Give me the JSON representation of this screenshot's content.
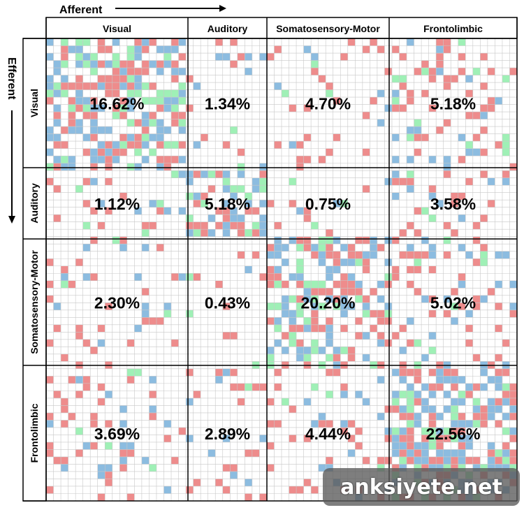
{
  "chart_data": {
    "type": "heatmap",
    "axis_titles": {
      "columns": "Afferent",
      "rows": "Efferent"
    },
    "networks": [
      "Visual",
      "Auditory",
      "Somatosensory-Motor",
      "Frontolimbic"
    ],
    "percentages": [
      [
        "16.62%",
        "1.34%",
        "4.70%",
        "5.18%"
      ],
      [
        "1.12%",
        "5.18%",
        "0.75%",
        "3.58%"
      ],
      [
        "2.30%",
        "0.43%",
        "20.20%",
        "5.02%"
      ],
      [
        "3.69%",
        "2.89%",
        "4.44%",
        "22.56%"
      ]
    ],
    "density": [
      [
        0.62,
        0.1,
        0.14,
        0.22
      ],
      [
        0.12,
        0.6,
        0.07,
        0.2
      ],
      [
        0.13,
        0.06,
        0.55,
        0.22
      ],
      [
        0.2,
        0.18,
        0.2,
        0.66
      ]
    ],
    "colors": {
      "red": "#ee8c8c",
      "blue": "#8cbce0",
      "green": "#9ff0b6",
      "grid": "#c8c8c8"
    },
    "grid": true
  },
  "watermark": "anksiyete.net"
}
